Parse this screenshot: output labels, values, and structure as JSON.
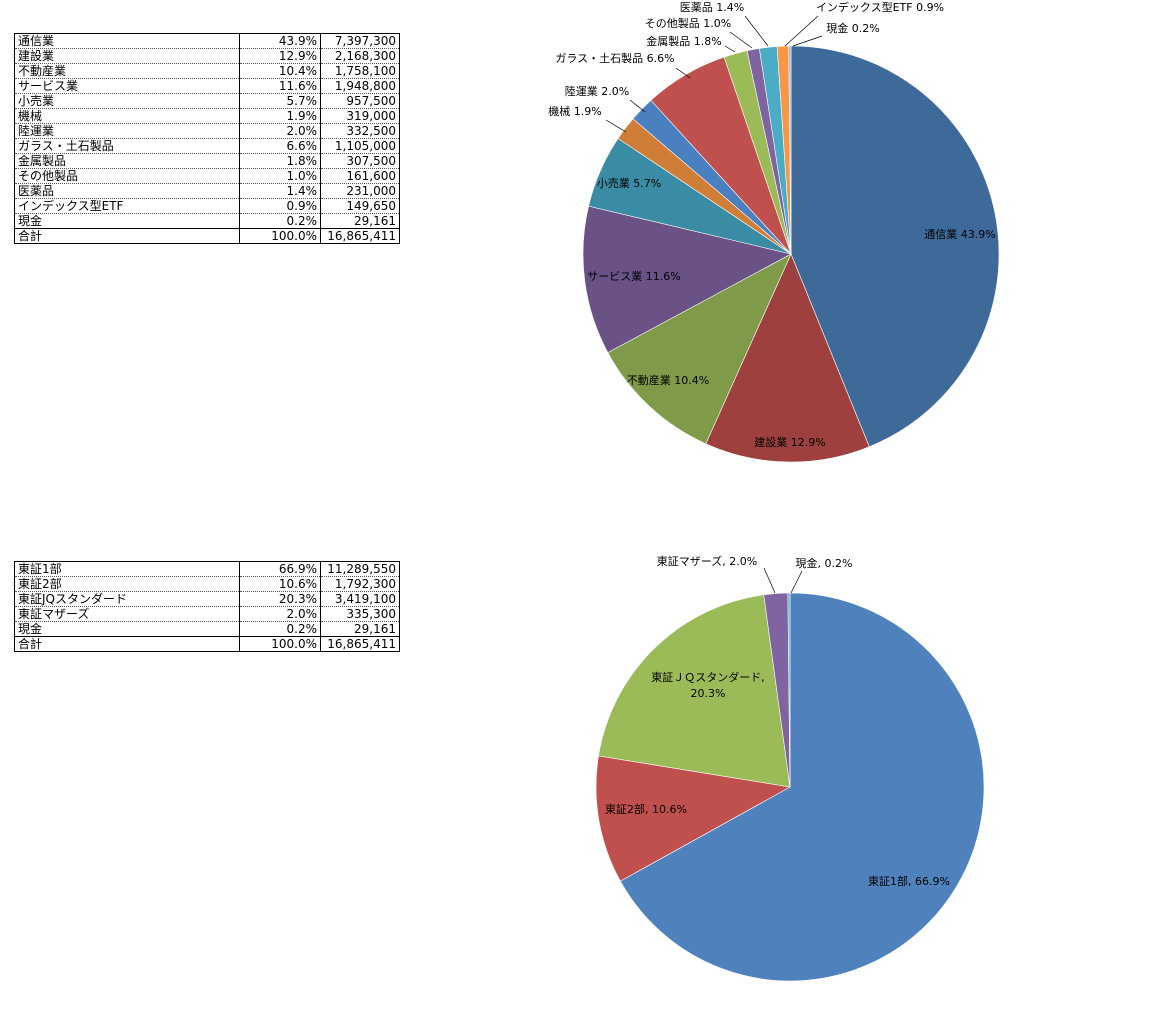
{
  "table1": {
    "rows": [
      {
        "name": "通信業",
        "pct": "43.9%",
        "value": "7,397,300"
      },
      {
        "name": "建設業",
        "pct": "12.9%",
        "value": "2,168,300"
      },
      {
        "name": "不動産業",
        "pct": "10.4%",
        "value": "1,758,100"
      },
      {
        "name": "サービス業",
        "pct": "11.6%",
        "value": "1,948,800"
      },
      {
        "name": "小売業",
        "pct": "5.7%",
        "value": "957,500"
      },
      {
        "name": "機械",
        "pct": "1.9%",
        "value": "319,000"
      },
      {
        "name": "陸運業",
        "pct": "2.0%",
        "value": "332,500"
      },
      {
        "name": "ガラス・土石製品",
        "pct": "6.6%",
        "value": "1,105,000"
      },
      {
        "name": "金属製品",
        "pct": "1.8%",
        "value": "307,500"
      },
      {
        "name": "その他製品",
        "pct": "1.0%",
        "value": "161,600"
      },
      {
        "name": "医薬品",
        "pct": "1.4%",
        "value": "231,000"
      },
      {
        "name": "インデックス型ETF",
        "pct": "0.9%",
        "value": "149,650"
      },
      {
        "name": "現金",
        "pct": "0.2%",
        "value": "29,161"
      }
    ],
    "total": {
      "name": "合計",
      "pct": "100.0%",
      "value": "16,865,411"
    }
  },
  "table2": {
    "rows": [
      {
        "name": "東証1部",
        "pct": "66.9%",
        "value": "11,289,550"
      },
      {
        "name": "東証2部",
        "pct": "10.6%",
        "value": "1,792,300"
      },
      {
        "name": "東証JQスタンダード",
        "pct": "20.3%",
        "value": "3,419,100"
      },
      {
        "name": "東証マザーズ",
        "pct": "2.0%",
        "value": "335,300"
      },
      {
        "name": "現金",
        "pct": "0.2%",
        "value": "29,161"
      }
    ],
    "total": {
      "name": "合計",
      "pct": "100.0%",
      "value": "16,865,411"
    }
  },
  "chart_data": [
    {
      "type": "pie",
      "title": "",
      "slices": [
        {
          "label": "通信業 43.9%",
          "value": 7397300,
          "color": "#3E6A9A"
        },
        {
          "label": "建設業 12.9%",
          "value": 2168300,
          "color": "#9E413E"
        },
        {
          "label": "不動産業 10.4%",
          "value": 1758100,
          "color": "#7F9A48"
        },
        {
          "label": "サービス業 11.6%",
          "value": 1948800,
          "color": "#6A5287"
        },
        {
          "label": "小売業 5.7%",
          "value": 957500,
          "color": "#398CA3"
        },
        {
          "label": "機械 1.9%",
          "value": 319000,
          "color": "#D07D37"
        },
        {
          "label": "陸運業 2.0%",
          "value": 332500,
          "color": "#4A7FC0"
        },
        {
          "label": "ガラス・土石製品 6.6%",
          "value": 1105000,
          "color": "#C0504D"
        },
        {
          "label": "金属製品 1.8%",
          "value": 307500,
          "color": "#9BBB59"
        },
        {
          "label": "その他製品 1.0%",
          "value": 161600,
          "color": "#8064A2"
        },
        {
          "label": "医薬品 1.4%",
          "value": 231000,
          "color": "#4BACC6"
        },
        {
          "label": "インデックス型ETF 0.9%",
          "value": 149650,
          "color": "#F79646"
        },
        {
          "label": "現金 0.2%",
          "value": 29161,
          "color": "#9BB4D8"
        }
      ]
    },
    {
      "type": "pie",
      "title": "",
      "slices": [
        {
          "label": "東証1部, 66.9%",
          "value": 11289550,
          "color": "#4F81BD"
        },
        {
          "label": "東証2部, 10.6%",
          "value": 1792300,
          "color": "#C0504D"
        },
        {
          "label": "東証ＪＱスタンダード, 20.3%",
          "value": 3419100,
          "color": "#9BBB59"
        },
        {
          "label": "東証マザーズ, 2.0%",
          "value": 335300,
          "color": "#8064A2"
        },
        {
          "label": "現金, 0.2%",
          "value": 29161,
          "color": "#4BACC6"
        }
      ]
    }
  ]
}
